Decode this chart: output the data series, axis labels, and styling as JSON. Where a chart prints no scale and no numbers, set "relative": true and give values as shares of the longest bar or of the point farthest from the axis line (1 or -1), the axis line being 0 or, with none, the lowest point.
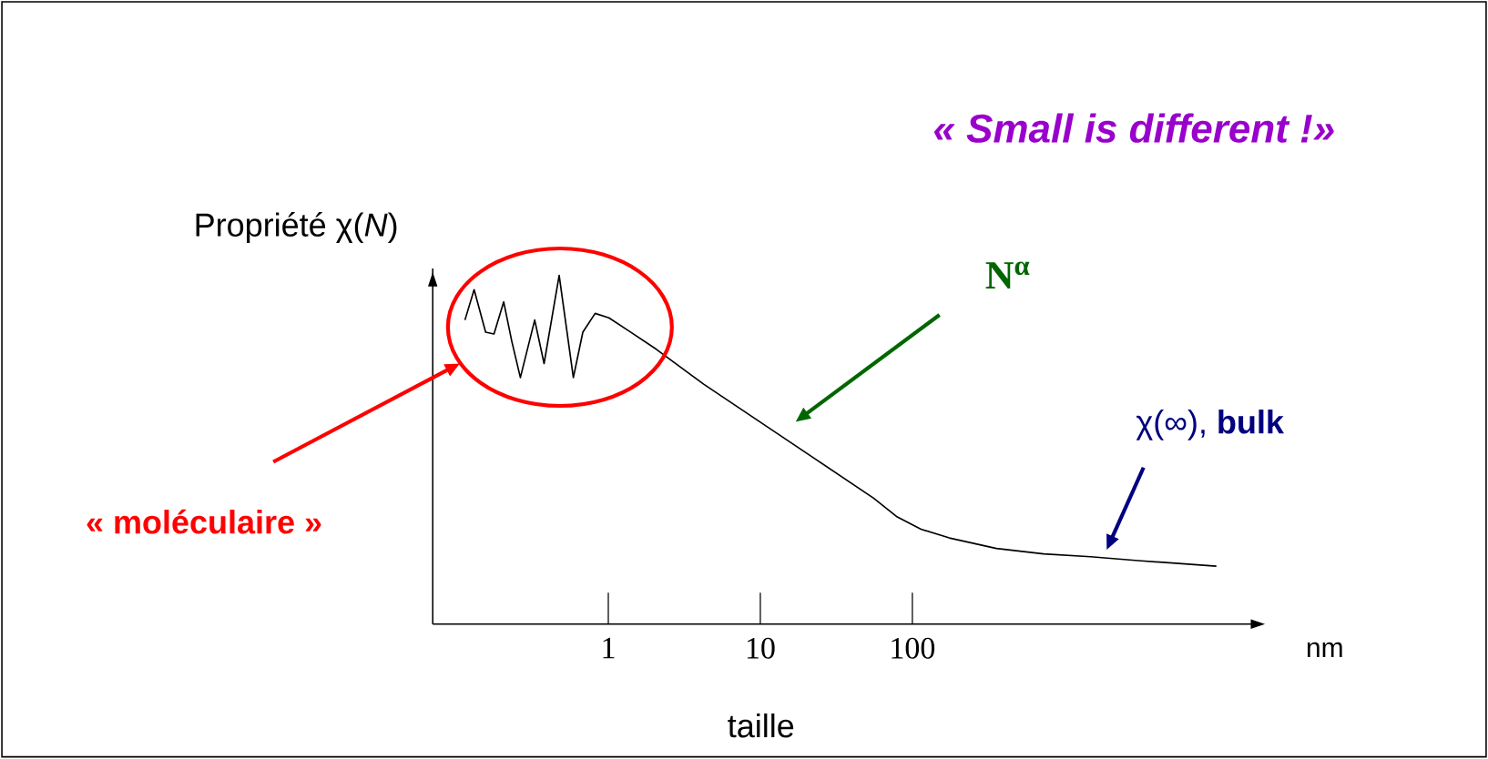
{
  "chart_data": {
    "type": "line",
    "title": "« Small is different !»",
    "ylabel": "Propriété χ(*N*)",
    "xlabel": "taille",
    "relative": true,
    "log": "x",
    "xlim": [
      0.07,
      20000
    ],
    "xticks": [
      1,
      10,
      100
    ],
    "color": "#000000",
    "x": [
      0.114,
      0.131,
      0.156,
      0.177,
      0.205,
      0.232,
      0.264,
      0.328,
      0.378,
      0.475,
      0.589,
      0.68,
      0.819,
      1.01,
      1.35,
      2.07,
      4.24,
      10,
      23.6,
      55.6,
      79.6,
      114,
      175,
      357,
      730,
      1490,
      3050,
      10000
    ],
    "values": [
      0.872,
      0.959,
      0.837,
      0.832,
      0.924,
      0.81,
      0.707,
      0.872,
      0.747,
      1.0,
      0.707,
      0.837,
      0.891,
      0.878,
      0.842,
      0.788,
      0.688,
      0.579,
      0.47,
      0.361,
      0.307,
      0.272,
      0.247,
      0.217,
      0.201,
      0.193,
      0.182,
      0.166
    ],
    "annotations": [
      "« moléculaire »",
      "N$^{α}$",
      "χ(∞), **bulk**",
      "nm"
    ]
  }
}
